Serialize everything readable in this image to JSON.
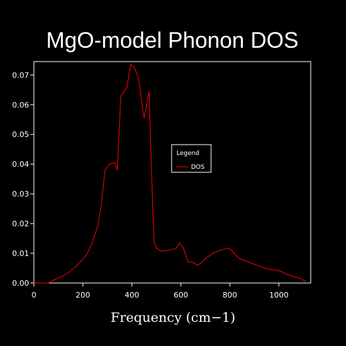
{
  "chart_data": {
    "type": "line",
    "title": "MgO-model Phonon DOS",
    "xlabel": "Frequency (cm−1)",
    "ylabel": "",
    "xlim": [
      0,
      1130
    ],
    "ylim": [
      0,
      0.0745
    ],
    "xticks": [
      0,
      200,
      400,
      600,
      800,
      1000
    ],
    "xtick_labels": [
      "0",
      "200",
      "400",
      "600",
      "800",
      "1000"
    ],
    "yticks": [
      0,
      0.01,
      0.02,
      0.03,
      0.04,
      0.05,
      0.06,
      0.07
    ],
    "ytick_labels": [
      "0.00",
      "0.01",
      "0.02",
      "0.03",
      "0.04",
      "0.05",
      "0.06",
      "0.07"
    ],
    "grid": false,
    "legend": {
      "title": "Legend",
      "placement": "center-right"
    },
    "series": [
      {
        "name": "DOS",
        "color": "#ff0000",
        "x": [
          0,
          60,
          80,
          110,
          140,
          170,
          200,
          215,
          235,
          250,
          260,
          275,
          290,
          310,
          330,
          340,
          355,
          365,
          380,
          395,
          410,
          420,
          430,
          440,
          450,
          460,
          470,
          480,
          490,
          500,
          520,
          550,
          580,
          595,
          610,
          630,
          650,
          665,
          680,
          700,
          730,
          760,
          790,
          800,
          820,
          840,
          870,
          910,
          950,
          1000,
          1030,
          1060,
          1090,
          1110
        ],
        "y": [
          0,
          0,
          0.001,
          0.002,
          0.0035,
          0.0055,
          0.008,
          0.0095,
          0.013,
          0.0165,
          0.019,
          0.026,
          0.038,
          0.04,
          0.0405,
          0.038,
          0.063,
          0.064,
          0.066,
          0.0735,
          0.0725,
          0.0705,
          0.0675,
          0.0605,
          0.0555,
          0.06,
          0.0645,
          0.038,
          0.014,
          0.0117,
          0.0107,
          0.011,
          0.0117,
          0.0135,
          0.0118,
          0.007,
          0.007,
          0.006,
          0.0065,
          0.0082,
          0.01,
          0.011,
          0.0117,
          0.0115,
          0.0098,
          0.0082,
          0.0072,
          0.006,
          0.0048,
          0.0042,
          0.003,
          0.0022,
          0.0015,
          0.0005
        ]
      }
    ]
  }
}
